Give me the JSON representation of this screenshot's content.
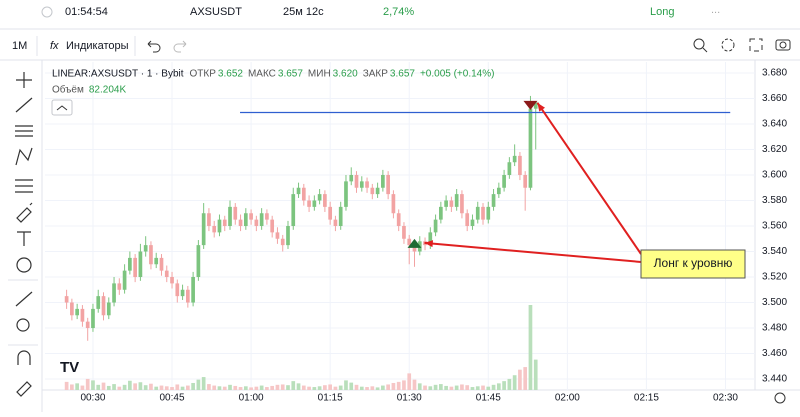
{
  "topbar": {
    "time": "01:54:54",
    "symbol": "AXSUSDT",
    "elapsed": "25м 12с",
    "change": "2,74%",
    "side": "Long",
    "more": "..."
  },
  "toolbar": {
    "interval": "1М",
    "indicators": "Индикаторы",
    "fx": "fx"
  },
  "chart_data": {
    "type": "candlestick",
    "legend": {
      "title": "LINEAR:AXSUSDT · 1 · Bybit",
      "open_label": "ОТКР",
      "open": "3.652",
      "high_label": "МАКС",
      "high": "3.657",
      "low_label": "МИН",
      "low": "3.620",
      "close_label": "ЗАКР",
      "close": "3.657",
      "change": "+0.005 (+0.14%)",
      "volume_name": "Объём",
      "volume_value": "82.204K"
    },
    "up_color": "#7cc47f",
    "down_color": "#f2a3a3",
    "volume_up_color": "#b9dfbb",
    "volume_down_color": "#f6c6c6",
    "x": [
      25,
      26,
      27,
      28,
      29,
      30,
      31,
      32,
      33,
      34,
      35,
      36,
      37,
      38,
      39,
      40,
      41,
      42,
      43,
      44,
      45,
      46,
      47,
      48,
      49,
      50,
      51,
      52,
      53,
      54,
      55,
      56,
      57,
      58,
      59,
      60,
      61,
      62,
      63,
      64,
      65,
      66,
      67,
      68,
      69,
      70,
      71,
      72,
      73,
      74,
      75,
      76,
      77,
      78,
      79,
      80,
      81,
      82,
      83,
      84,
      85,
      86,
      87,
      88,
      89,
      90,
      91,
      92,
      93,
      94,
      95,
      96,
      97,
      98,
      99,
      100,
      101,
      102,
      103,
      104,
      105,
      106,
      107,
      108,
      109,
      110,
      111,
      112,
      113,
      114
    ],
    "ohlc": [
      [
        3.505,
        3.51,
        3.495,
        3.5
      ],
      [
        3.5,
        3.503,
        3.486,
        3.49
      ],
      [
        3.49,
        3.499,
        3.487,
        3.495
      ],
      [
        3.495,
        3.498,
        3.481,
        3.485
      ],
      [
        3.485,
        3.488,
        3.47,
        3.48
      ],
      [
        3.48,
        3.499,
        3.477,
        3.495
      ],
      [
        3.495,
        3.51,
        3.492,
        3.505
      ],
      [
        3.505,
        3.508,
        3.486,
        3.49
      ],
      [
        3.49,
        3.504,
        3.487,
        3.5
      ],
      [
        3.5,
        3.52,
        3.497,
        3.515
      ],
      [
        3.515,
        3.519,
        3.506,
        3.51
      ],
      [
        3.51,
        3.53,
        3.507,
        3.525
      ],
      [
        3.525,
        3.54,
        3.522,
        3.535
      ],
      [
        3.535,
        3.538,
        3.516,
        3.52
      ],
      [
        3.52,
        3.546,
        3.517,
        3.54
      ],
      [
        3.54,
        3.552,
        3.536,
        3.545
      ],
      [
        3.545,
        3.548,
        3.526,
        3.53
      ],
      [
        3.53,
        3.539,
        3.527,
        3.535
      ],
      [
        3.535,
        3.538,
        3.521,
        3.525
      ],
      [
        3.525,
        3.529,
        3.516,
        3.52
      ],
      [
        3.52,
        3.524,
        3.511,
        3.515
      ],
      [
        3.515,
        3.518,
        3.5,
        3.505
      ],
      [
        3.505,
        3.514,
        3.502,
        3.51
      ],
      [
        3.51,
        3.513,
        3.496,
        3.5
      ],
      [
        3.5,
        3.524,
        3.497,
        3.52
      ],
      [
        3.52,
        3.549,
        3.517,
        3.545
      ],
      [
        3.545,
        3.578,
        3.542,
        3.57
      ],
      [
        3.57,
        3.574,
        3.556,
        3.56
      ],
      [
        3.56,
        3.564,
        3.551,
        3.555
      ],
      [
        3.555,
        3.569,
        3.552,
        3.565
      ],
      [
        3.565,
        3.568,
        3.556,
        3.56
      ],
      [
        3.56,
        3.58,
        3.557,
        3.575
      ],
      [
        3.575,
        3.578,
        3.561,
        3.565
      ],
      [
        3.565,
        3.569,
        3.556,
        3.56
      ],
      [
        3.56,
        3.574,
        3.557,
        3.57
      ],
      [
        3.57,
        3.573,
        3.561,
        3.565
      ],
      [
        3.565,
        3.568,
        3.556,
        3.56
      ],
      [
        3.56,
        3.574,
        3.557,
        3.57
      ],
      [
        3.57,
        3.573,
        3.561,
        3.565
      ],
      [
        3.565,
        3.568,
        3.551,
        3.555
      ],
      [
        3.555,
        3.559,
        3.546,
        3.55
      ],
      [
        3.55,
        3.553,
        3.54,
        3.545
      ],
      [
        3.545,
        3.564,
        3.542,
        3.56
      ],
      [
        3.56,
        3.59,
        3.557,
        3.585
      ],
      [
        3.585,
        3.594,
        3.582,
        3.59
      ],
      [
        3.59,
        3.593,
        3.576,
        3.58
      ],
      [
        3.58,
        3.584,
        3.571,
        3.575
      ],
      [
        3.575,
        3.584,
        3.572,
        3.58
      ],
      [
        3.58,
        3.589,
        3.577,
        3.585
      ],
      [
        3.585,
        3.588,
        3.571,
        3.575
      ],
      [
        3.575,
        3.579,
        3.561,
        3.565
      ],
      [
        3.565,
        3.568,
        3.556,
        3.56
      ],
      [
        3.56,
        3.579,
        3.557,
        3.575
      ],
      [
        3.575,
        3.6,
        3.572,
        3.595
      ],
      [
        3.595,
        3.606,
        3.592,
        3.6
      ],
      [
        3.6,
        3.603,
        3.586,
        3.59
      ],
      [
        3.59,
        3.599,
        3.587,
        3.595
      ],
      [
        3.595,
        3.598,
        3.586,
        3.59
      ],
      [
        3.59,
        3.593,
        3.581,
        3.585
      ],
      [
        3.585,
        3.594,
        3.582,
        3.59
      ],
      [
        3.59,
        3.604,
        3.587,
        3.6
      ],
      [
        3.6,
        3.603,
        3.581,
        3.585
      ],
      [
        3.585,
        3.588,
        3.566,
        3.57
      ],
      [
        3.57,
        3.573,
        3.556,
        3.56
      ],
      [
        3.56,
        3.563,
        3.546,
        3.55
      ],
      [
        3.55,
        3.553,
        3.53,
        3.545
      ],
      [
        3.545,
        3.548,
        3.528,
        3.54
      ],
      [
        3.54,
        3.552,
        3.537,
        3.548
      ],
      [
        3.548,
        3.551,
        3.541,
        3.545
      ],
      [
        3.545,
        3.559,
        3.542,
        3.555
      ],
      [
        3.555,
        3.569,
        3.552,
        3.565
      ],
      [
        3.565,
        3.579,
        3.562,
        3.575
      ],
      [
        3.575,
        3.584,
        3.572,
        3.58
      ],
      [
        3.58,
        3.583,
        3.571,
        3.575
      ],
      [
        3.575,
        3.589,
        3.572,
        3.585
      ],
      [
        3.585,
        3.588,
        3.566,
        3.57
      ],
      [
        3.57,
        3.573,
        3.556,
        3.56
      ],
      [
        3.56,
        3.569,
        3.557,
        3.565
      ],
      [
        3.565,
        3.579,
        3.562,
        3.575
      ],
      [
        3.575,
        3.578,
        3.561,
        3.565
      ],
      [
        3.565,
        3.579,
        3.562,
        3.575
      ],
      [
        3.575,
        3.589,
        3.572,
        3.585
      ],
      [
        3.585,
        3.594,
        3.582,
        3.59
      ],
      [
        3.59,
        3.604,
        3.587,
        3.6
      ],
      [
        3.6,
        3.614,
        3.597,
        3.61
      ],
      [
        3.61,
        3.624,
        3.607,
        3.615
      ],
      [
        3.615,
        3.618,
        3.596,
        3.6
      ],
      [
        3.6,
        3.603,
        3.572,
        3.59
      ],
      [
        3.59,
        3.662,
        3.588,
        3.652
      ],
      [
        3.652,
        3.657,
        3.62,
        3.657
      ]
    ],
    "volume": [
      22000,
      15000,
      18000,
      12000,
      30000,
      26000,
      14000,
      20000,
      11000,
      16000,
      9000,
      14000,
      25000,
      18000,
      21000,
      13000,
      17000,
      9000,
      12000,
      10000,
      8000,
      15000,
      9000,
      12000,
      19000,
      28000,
      35000,
      16000,
      12000,
      10000,
      9000,
      14000,
      11000,
      8000,
      10000,
      7000,
      9000,
      12000,
      8000,
      11000,
      14000,
      15000,
      13000,
      24000,
      18000,
      12000,
      9000,
      8000,
      10000,
      13000,
      15000,
      9000,
      12000,
      26000,
      20000,
      14000,
      9000,
      8000,
      10000,
      7000,
      12000,
      15000,
      19000,
      22000,
      26000,
      45000,
      28000,
      18000,
      12000,
      10000,
      14000,
      16000,
      11000,
      9000,
      12000,
      15000,
      13000,
      8000,
      10000,
      12000,
      9000,
      14000,
      18000,
      24000,
      30000,
      40000,
      55000,
      62000,
      230000,
      82204
    ],
    "xlim": [
      20.9,
      155.6
    ],
    "ylim": [
      3.4314,
      3.6886
    ],
    "xticks": [
      {
        "value": 30,
        "label": "00:30"
      },
      {
        "value": 45,
        "label": "00:45"
      },
      {
        "value": 60,
        "label": "01:00"
      },
      {
        "value": 75,
        "label": "01:15"
      },
      {
        "value": 90,
        "label": "01:30"
      },
      {
        "value": 105,
        "label": "01:45"
      },
      {
        "value": 120,
        "label": "02:00"
      },
      {
        "value": 135,
        "label": "02:15"
      },
      {
        "value": 150,
        "label": "02:30"
      }
    ],
    "yticks": [
      {
        "value": 3.44,
        "label": "3.440"
      },
      {
        "value": 3.46,
        "label": "3.460"
      },
      {
        "value": 3.48,
        "label": "3.480"
      },
      {
        "value": 3.5,
        "label": "3.500"
      },
      {
        "value": 3.52,
        "label": "3.520"
      },
      {
        "value": 3.54,
        "label": "3.540"
      },
      {
        "value": 3.56,
        "label": "3.560"
      },
      {
        "value": 3.58,
        "label": "3.580"
      },
      {
        "value": 3.6,
        "label": "3.600"
      },
      {
        "value": 3.62,
        "label": "3.620"
      },
      {
        "value": 3.64,
        "label": "3.640"
      },
      {
        "value": 3.66,
        "label": "3.660"
      },
      {
        "value": 3.68,
        "label": "3.680"
      }
    ],
    "grid": true,
    "level": {
      "value": 3.649,
      "x_range": [
        57.9,
        150.9
      ],
      "color": "#2f5fd0"
    },
    "markers": [
      {
        "x": 91,
        "y": 3.546,
        "shape": "up",
        "color": "#1e6b34"
      },
      {
        "x": 113,
        "y": 3.655,
        "shape": "down",
        "color": "#8b1a1a"
      }
    ],
    "callout": "Лонг к уровню"
  }
}
